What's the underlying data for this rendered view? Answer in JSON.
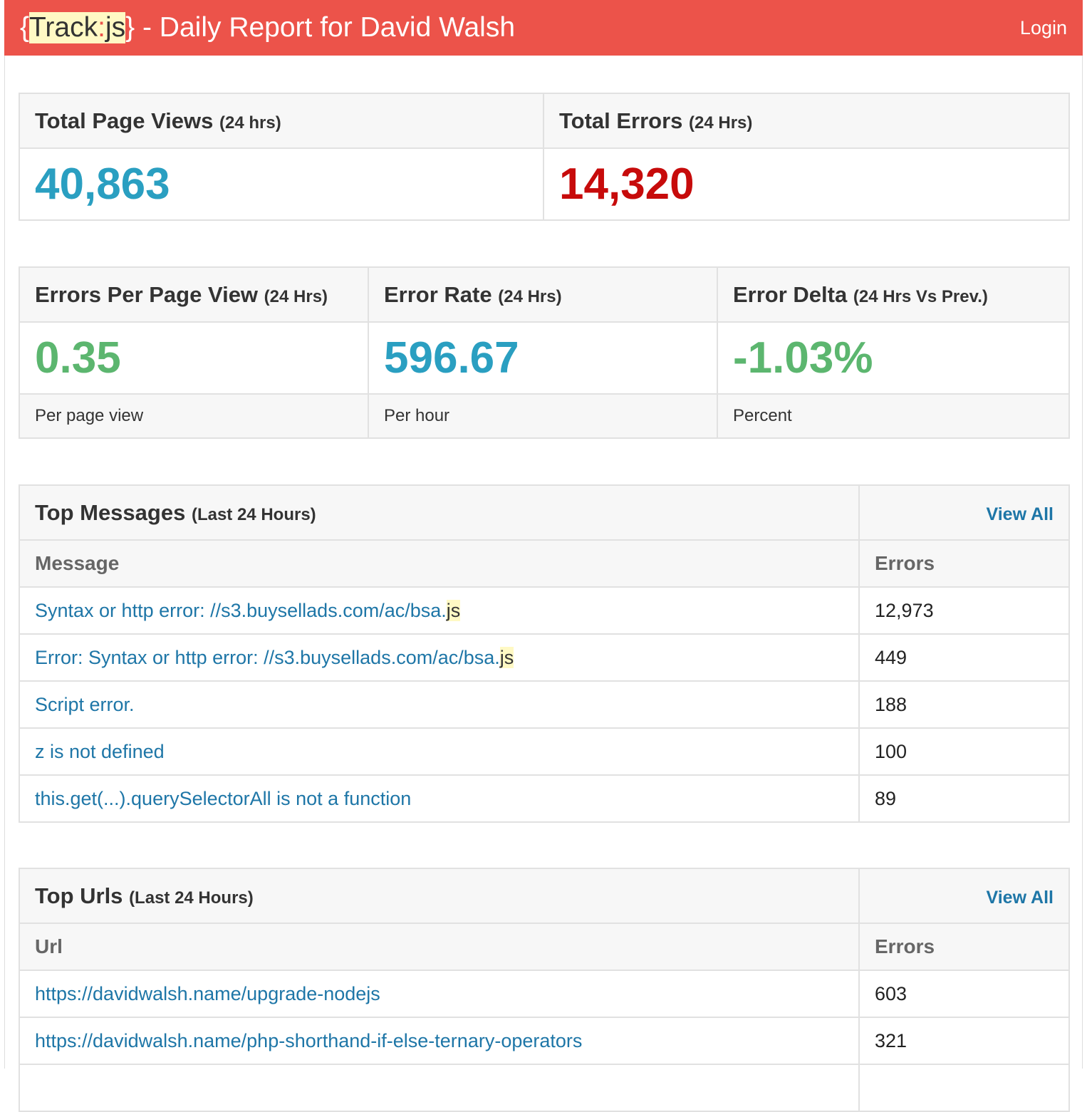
{
  "header": {
    "brand_open": "{",
    "brand_track": "Track",
    "brand_sep": ":",
    "brand_js": "js",
    "brand_close": "}",
    "title_rest": " - Daily Report for David Walsh",
    "login": "Login"
  },
  "totals": {
    "page_views": {
      "label": "Total Page Views",
      "period": "(24 hrs)",
      "value": "40,863"
    },
    "errors": {
      "label": "Total Errors",
      "period": "(24 Hrs)",
      "value": "14,320"
    }
  },
  "metrics": [
    {
      "label": "Errors Per Page View",
      "period": "(24 Hrs)",
      "value": "0.35",
      "unit": "Per page view"
    },
    {
      "label": "Error Rate",
      "period": "(24 Hrs)",
      "value": "596.67",
      "unit": "Per hour"
    },
    {
      "label": "Error Delta",
      "period": "(24 Hrs Vs Prev.)",
      "value": "-1.03%",
      "unit": "Percent"
    }
  ],
  "top_messages": {
    "title": "Top Messages",
    "period": "(Last 24 Hours)",
    "view_all": "View All",
    "col_message": "Message",
    "col_errors": "Errors",
    "rows": [
      {
        "text": "Syntax or http error: //s3.buysellads.com/ac/bsa.",
        "suffix": "js",
        "errors": "12,973"
      },
      {
        "text": "Error: Syntax or http error: //s3.buysellads.com/ac/bsa.",
        "suffix": "js",
        "errors": "449"
      },
      {
        "text": "Script error.",
        "suffix": "",
        "errors": "188"
      },
      {
        "text": "z is not defined",
        "suffix": "",
        "errors": "100"
      },
      {
        "text": "this.get(...).querySelectorAll is not a function",
        "suffix": "",
        "errors": "89"
      }
    ]
  },
  "top_urls": {
    "title": "Top Urls",
    "period": "(Last 24 Hours)",
    "view_all": "View All",
    "col_url": "Url",
    "col_errors": "Errors",
    "rows": [
      {
        "text": "https://davidwalsh.name/upgrade-nodejs",
        "errors": "603"
      },
      {
        "text": "https://davidwalsh.name/php-shorthand-if-else-ternary-operators",
        "errors": "321"
      }
    ]
  }
}
